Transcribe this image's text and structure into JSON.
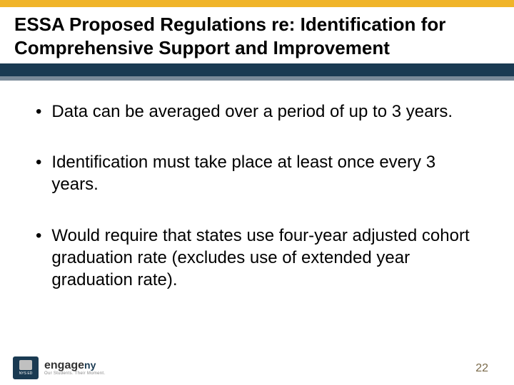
{
  "colors": {
    "gold": "#f0b429",
    "navy": "#1a3a52",
    "gray_band": "#7a8a99",
    "text": "#000000",
    "page_num": "#7a6a4a"
  },
  "title": "ESSA Proposed Regulations re: Identification for Comprehensive Support and Improvement",
  "bullets": [
    "Data can be averaged over a period of up to 3 years.",
    "Identification must take place at least once every 3 years.",
    "Would require that states use four-year adjusted cohort graduation rate (excludes use of extended year graduation rate)."
  ],
  "footer": {
    "nysed_label": "NYS ED",
    "engage_text": "engage",
    "engage_suffix": "ny",
    "engage_tagline": "Our Students. Their Moment.",
    "page_number": "22"
  }
}
